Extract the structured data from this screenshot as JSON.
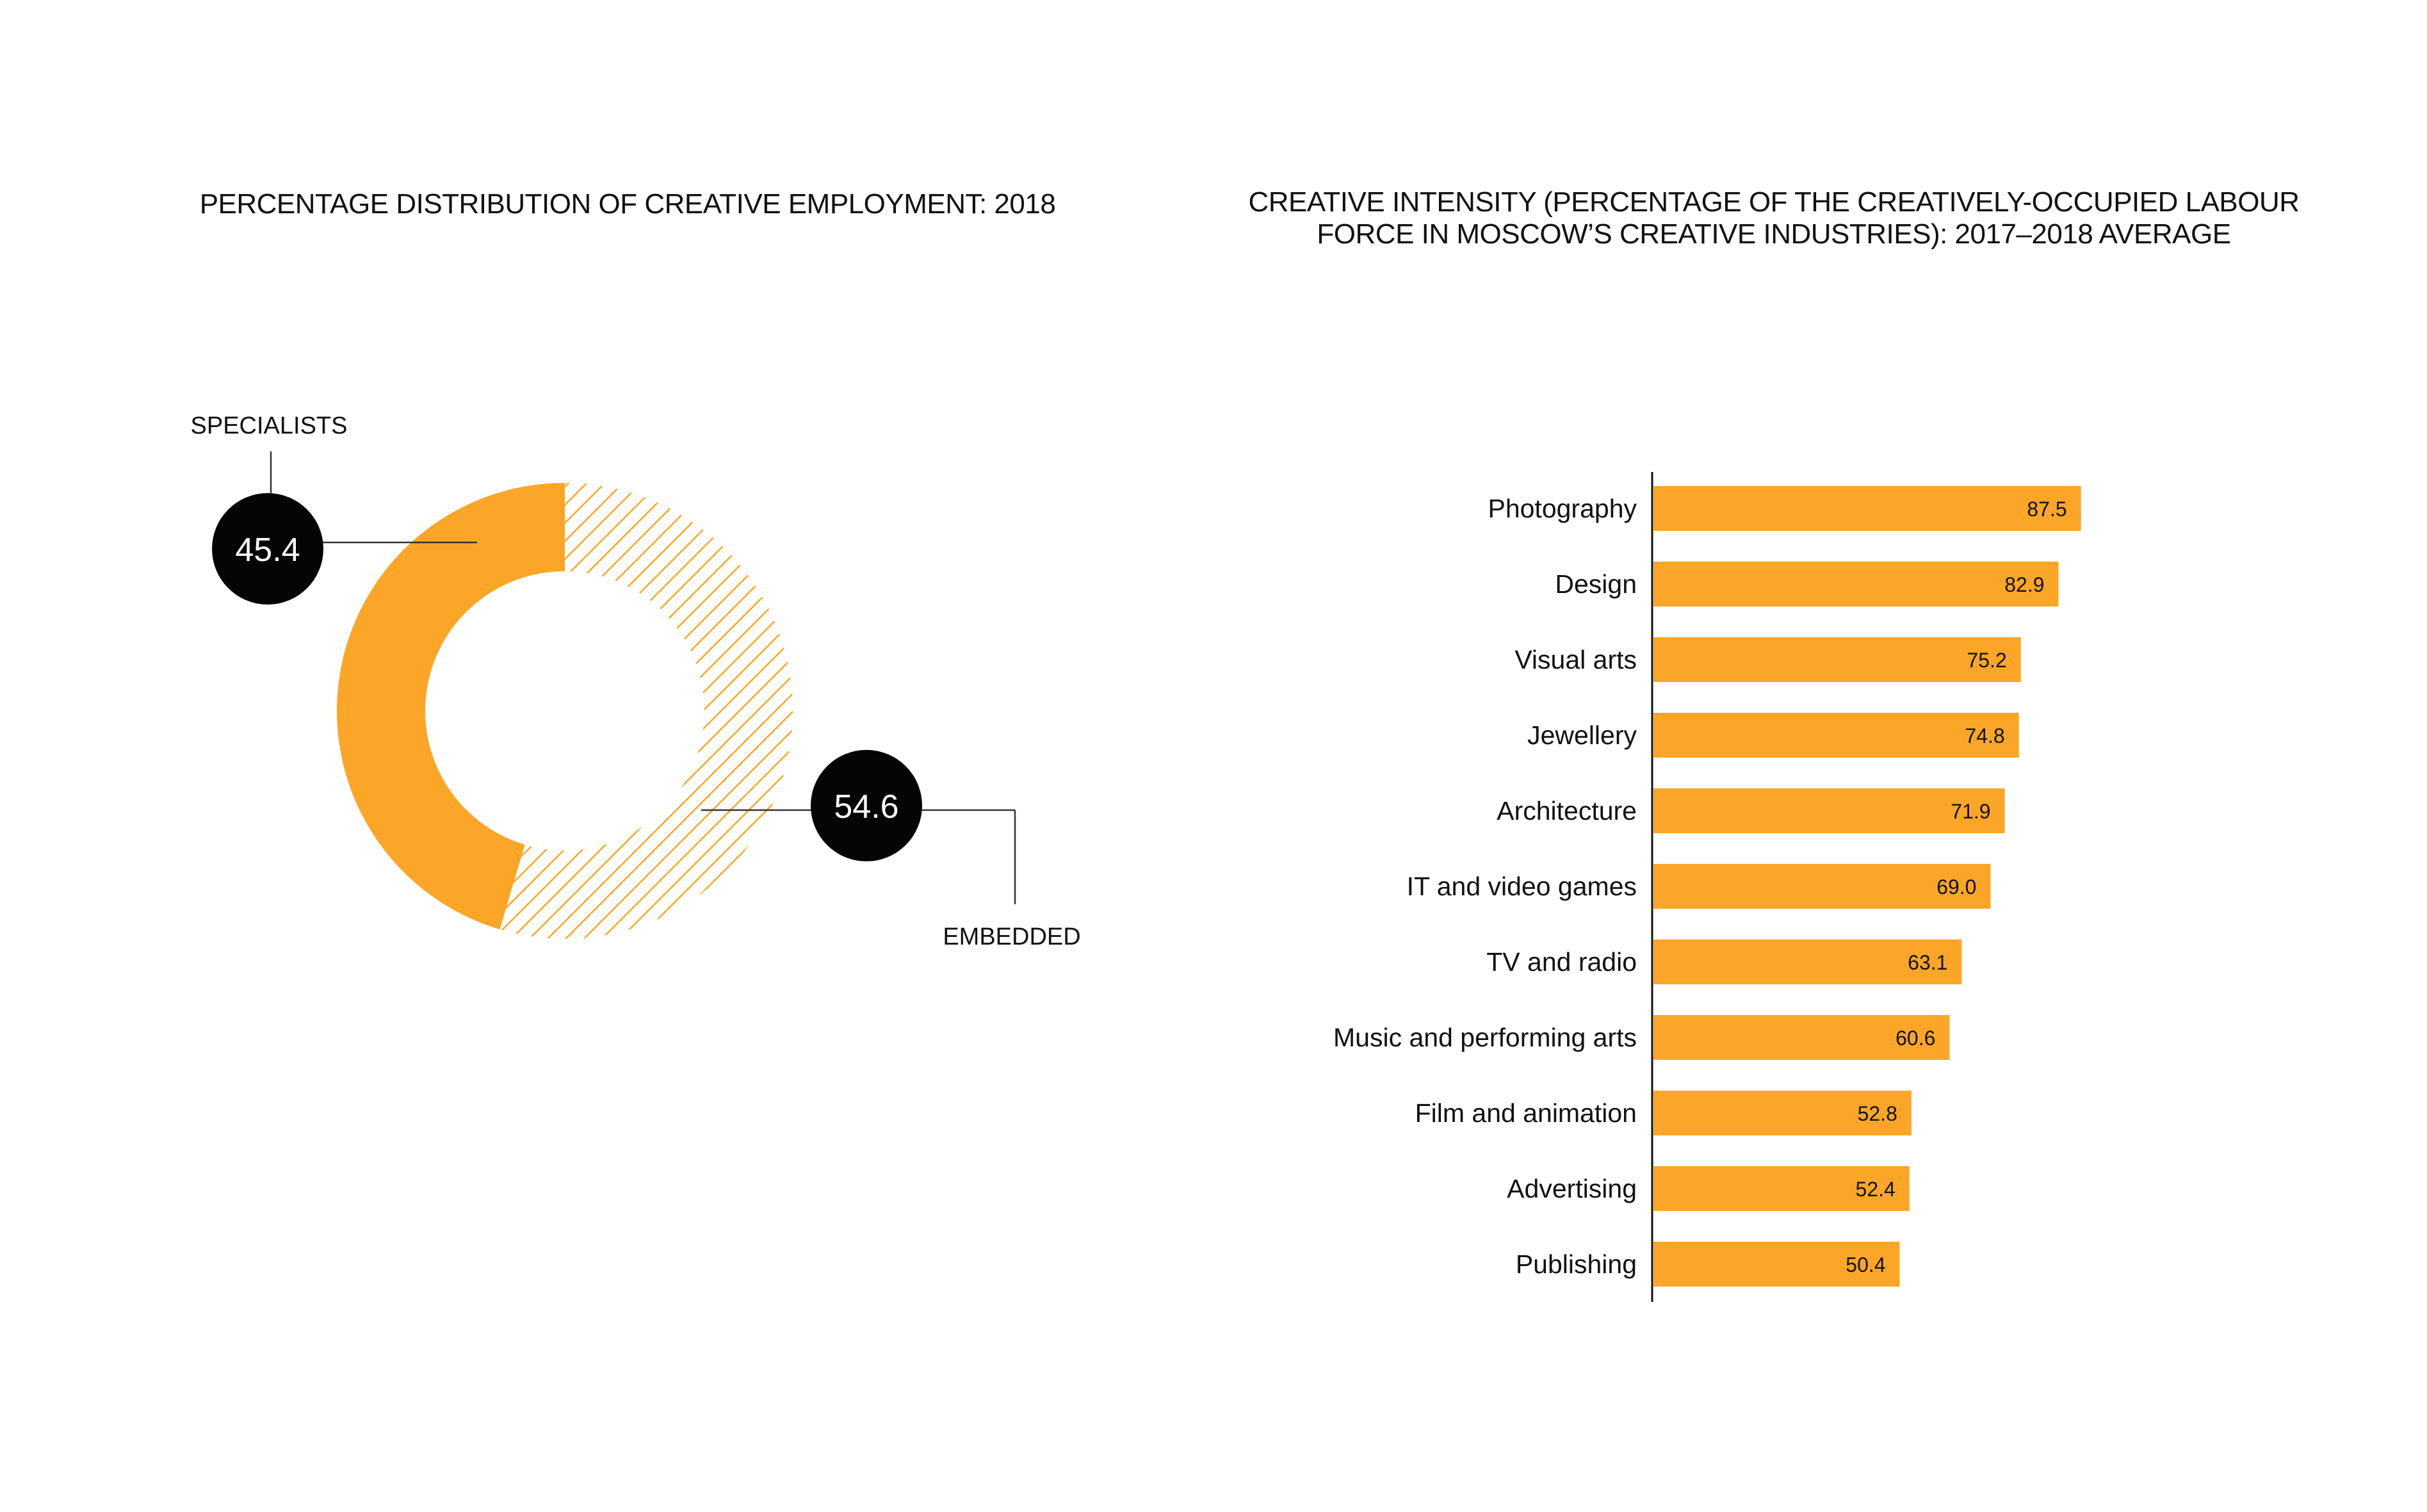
{
  "colors": {
    "accent": "#FBA629",
    "text": "#111111",
    "bubble": "#050505",
    "leader": "#333333"
  },
  "chart_data": [
    {
      "type": "pie",
      "variant": "donut",
      "title": "PERCENTAGE DISTRIBUTION OF CREATIVE EMPLOYMENT: 2018",
      "slices": [
        {
          "label": "SPECIALISTS",
          "value": 45.4,
          "value_label": "45.4",
          "fill": "solid",
          "color": "#FBA629"
        },
        {
          "label": "EMBEDDED",
          "value": 54.6,
          "value_label": "54.6",
          "fill": "hatched",
          "color": "#FBA629"
        }
      ]
    },
    {
      "type": "bar",
      "orientation": "horizontal",
      "title_lines": [
        "CREATIVE INTENSITY (PERCENTAGE OF THE CREATIVELY-OCCUPIED LABOUR",
        "FORCE IN MOSCOW’S CREATIVE INDUSTRIES): 2017–2018 AVERAGE"
      ],
      "categories": [
        "Photography",
        "Design",
        "Visual arts",
        "Jewellery",
        "Architecture",
        "IT and video games",
        "TV and radio",
        "Music and performing arts",
        "Film and animation",
        "Advertising",
        "Publishing"
      ],
      "values": [
        87.5,
        82.9,
        75.2,
        74.8,
        71.9,
        69.0,
        63.1,
        60.6,
        52.8,
        52.4,
        50.4
      ],
      "value_labels": [
        "87.5",
        "82.9",
        "75.2",
        "74.8",
        "71.9",
        "69.0",
        "63.1",
        "60.6",
        "52.8",
        "52.4",
        "50.4"
      ],
      "xlim": [
        0,
        100
      ],
      "grid": false,
      "color": "#FBA629"
    }
  ]
}
